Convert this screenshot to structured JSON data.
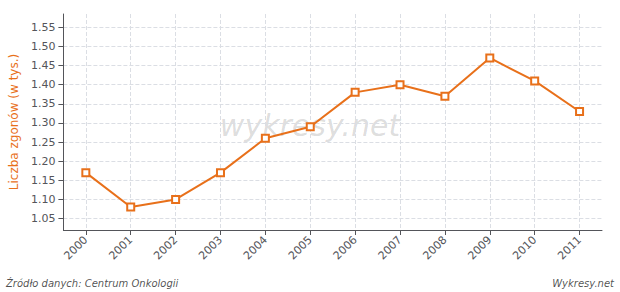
{
  "chart_data": {
    "type": "line",
    "x": [
      2000,
      2001,
      2002,
      2003,
      2004,
      2005,
      2006,
      2007,
      2008,
      2009,
      2010,
      2011
    ],
    "values": [
      1.17,
      1.08,
      1.1,
      1.17,
      1.26,
      1.29,
      1.38,
      1.4,
      1.37,
      1.47,
      1.41,
      1.33
    ],
    "color": "#e8701a",
    "marker": "square",
    "line_style": "solid",
    "ylabel": "Liczba zgonów (w tys.)",
    "annotations": [
      "wykresy.net",
      "Źródło danych: Centrum Onkologii",
      "Wykresy.net"
    ],
    "xlim": [
      1999.5,
      2011.5
    ],
    "xticks": [
      2000,
      2001,
      2002,
      2003,
      2004,
      2005,
      2006,
      2007,
      2008,
      2009,
      2010,
      2011
    ],
    "ylim": [
      1.02,
      1.585
    ],
    "yticks": [
      1.05,
      {
        "value": 1.1,
        "label": "1.10"
      },
      1.15,
      {
        "value": 1.2,
        "label": "1.20"
      },
      1.25,
      {
        "value": 1.3,
        "label": "1.30"
      },
      1.35,
      {
        "value": 1.4,
        "label": "1.40"
      },
      1.45,
      {
        "value": 1.5,
        "label": "1.50"
      },
      1.55
    ],
    "grid": true
  }
}
